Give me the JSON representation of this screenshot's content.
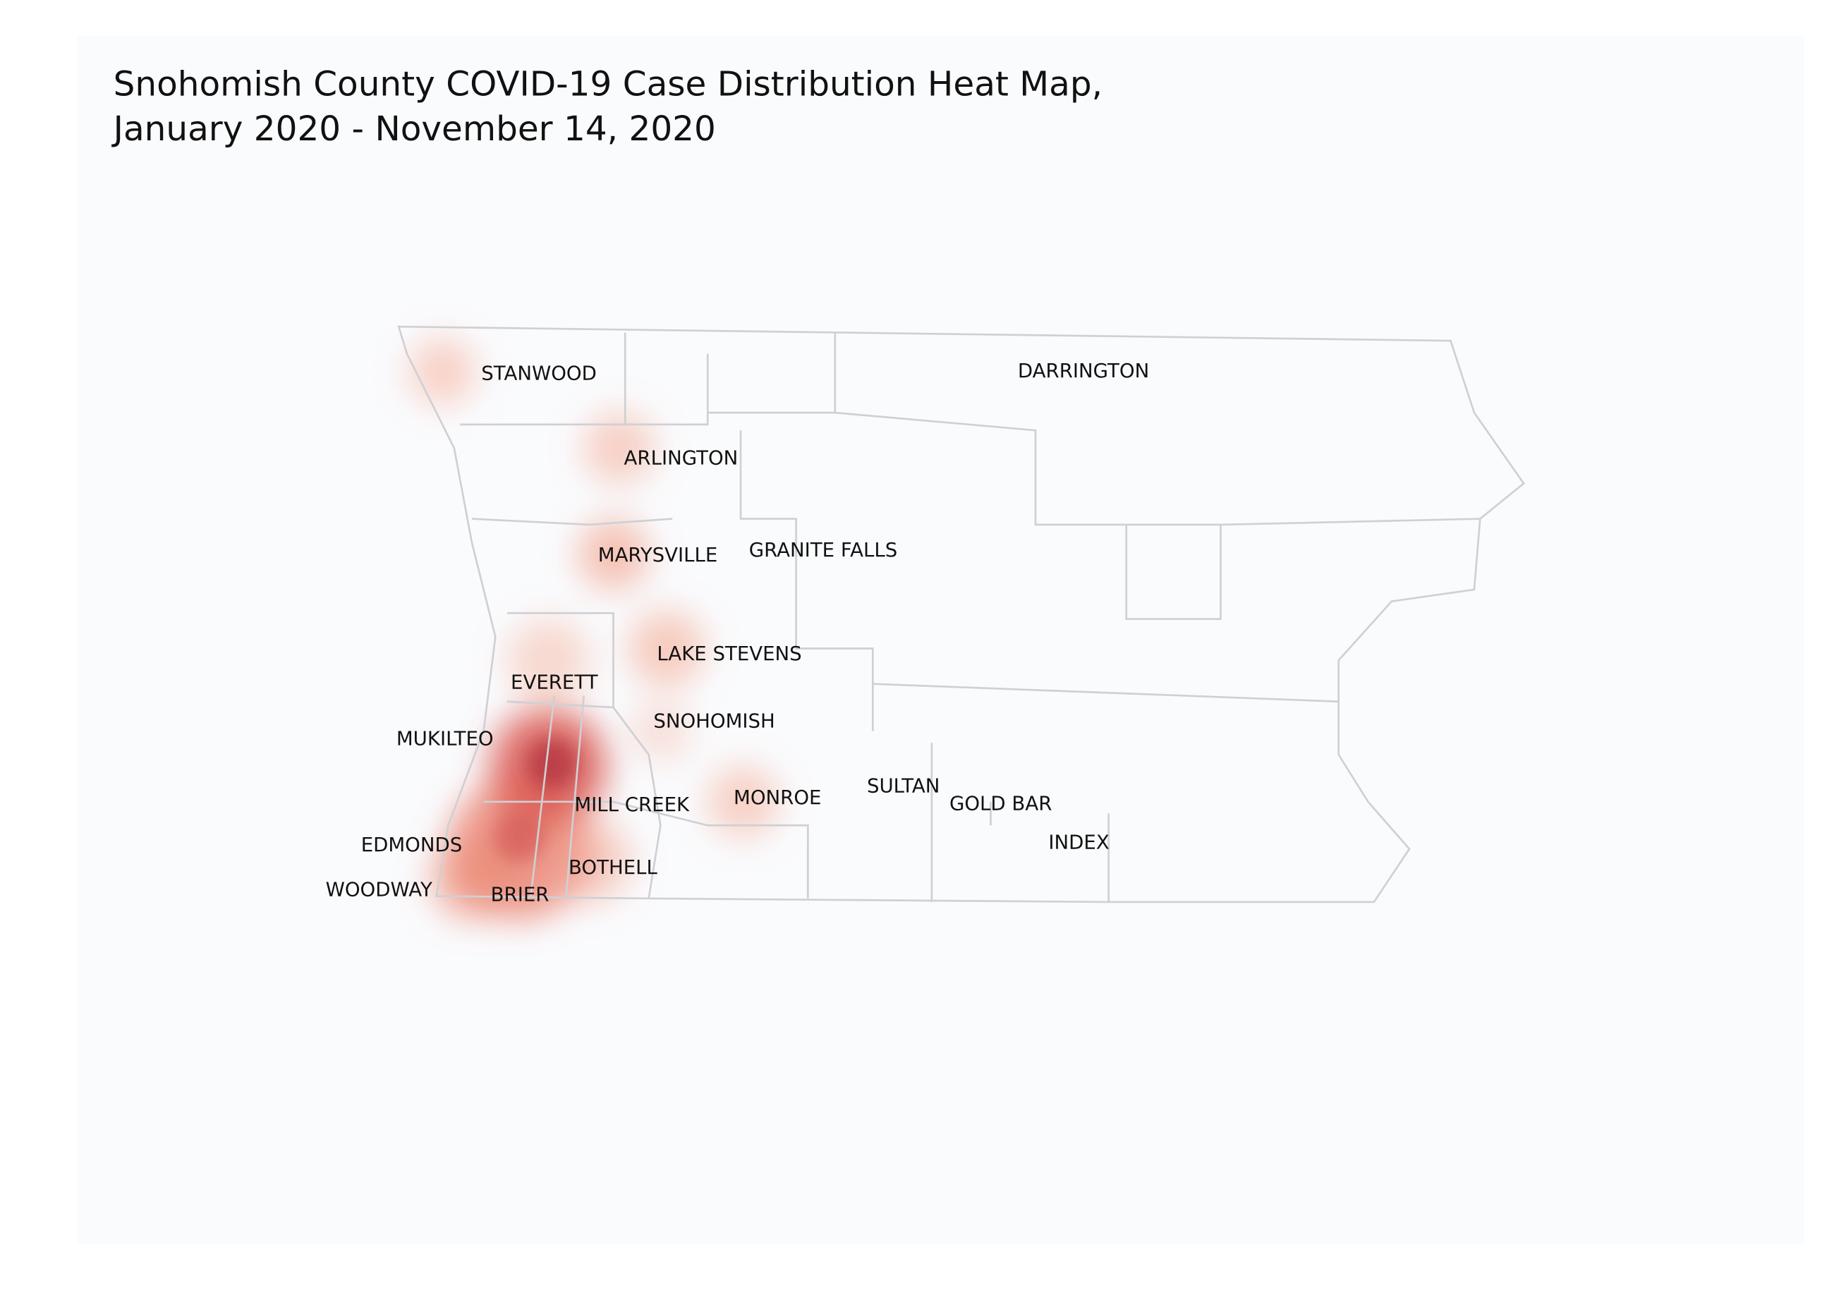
{
  "title": [
    "Snohomish County COVID-19 Case Distribution Heat Map,",
    "January 2020 - November 14, 2020"
  ],
  "places": [
    "STANWOOD",
    "DARRINGTON",
    "ARLINGTON",
    "MARYSVILLE",
    "GRANITE FALLS",
    "LAKE STEVENS",
    "EVERETT",
    "SNOHOMISH",
    "MUKILTEO",
    "MILL CREEK",
    "MONROE",
    "SULTAN",
    "GOLD BAR",
    "INDEX",
    "EDMONDS",
    "BOTHELL",
    "WOODWAY",
    "BRIER"
  ]
}
